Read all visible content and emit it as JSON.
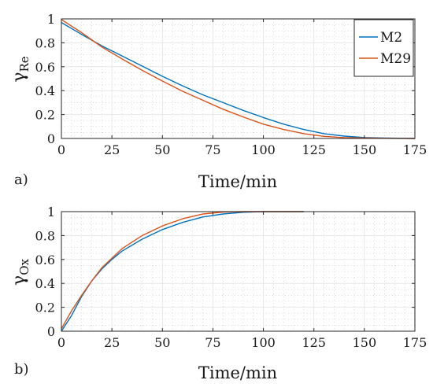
{
  "chart_data": [
    {
      "type": "line",
      "panel_label": "a)",
      "xlabel": "Time/min",
      "ylabel": "γ",
      "ylabel_subscript": "Re",
      "xlim": [
        0,
        175
      ],
      "ylim": [
        0,
        1
      ],
      "xticks": [
        0,
        25,
        50,
        75,
        100,
        125,
        150,
        175
      ],
      "yticks": [
        0,
        0.2,
        0.4,
        0.6,
        0.8,
        1
      ],
      "grid": true,
      "minor_grid": true,
      "legend": {
        "position": "top-right",
        "entries": [
          "M2",
          "M29"
        ]
      },
      "series": [
        {
          "name": "M2",
          "color": "#0072BD",
          "x": [
            0,
            10,
            20,
            30,
            40,
            50,
            60,
            70,
            80,
            90,
            100,
            110,
            120,
            130,
            140,
            150,
            160,
            175
          ],
          "y": [
            0.97,
            0.87,
            0.775,
            0.69,
            0.605,
            0.52,
            0.44,
            0.365,
            0.3,
            0.235,
            0.175,
            0.12,
            0.075,
            0.04,
            0.02,
            0.008,
            0.004,
            0.0
          ]
        },
        {
          "name": "M29",
          "color": "#D95319",
          "x": [
            0,
            10,
            20,
            30,
            40,
            50,
            60,
            70,
            80,
            90,
            100,
            110,
            120,
            130,
            140,
            150,
            160,
            175
          ],
          "y": [
            0.995,
            0.885,
            0.765,
            0.665,
            0.57,
            0.48,
            0.395,
            0.32,
            0.245,
            0.18,
            0.12,
            0.075,
            0.04,
            0.018,
            0.007,
            0.003,
            0.001,
            0.0
          ]
        }
      ]
    },
    {
      "type": "line",
      "panel_label": "b)",
      "xlabel": "Time/min",
      "ylabel": "γ",
      "ylabel_subscript": "Ox",
      "xlim": [
        0,
        175
      ],
      "ylim": [
        0,
        1
      ],
      "xticks": [
        0,
        25,
        50,
        75,
        100,
        125,
        150,
        175
      ],
      "yticks": [
        0,
        0.2,
        0.4,
        0.6,
        0.8,
        1
      ],
      "grid": true,
      "minor_grid": true,
      "series": [
        {
          "name": "M2",
          "color": "#0072BD",
          "x": [
            0,
            5,
            10,
            15,
            20,
            25,
            30,
            40,
            50,
            60,
            70,
            80,
            90,
            100,
            110,
            120
          ],
          "y": [
            0.0,
            0.13,
            0.29,
            0.42,
            0.52,
            0.6,
            0.67,
            0.77,
            0.85,
            0.91,
            0.955,
            0.98,
            0.995,
            1.0,
            1.0,
            1.0
          ]
        },
        {
          "name": "M29",
          "color": "#D95319",
          "x": [
            0,
            5,
            10,
            15,
            20,
            25,
            30,
            40,
            50,
            60,
            70,
            80,
            90,
            100,
            110,
            120
          ],
          "y": [
            0.02,
            0.17,
            0.3,
            0.42,
            0.53,
            0.61,
            0.69,
            0.8,
            0.88,
            0.94,
            0.98,
            0.997,
            1.0,
            1.0,
            1.0,
            1.0
          ]
        }
      ]
    }
  ]
}
